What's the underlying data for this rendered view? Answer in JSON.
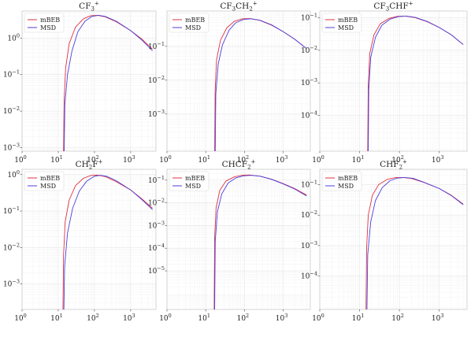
{
  "chart_data": [
    {
      "type": "line",
      "title": "CF$_3^+$",
      "title_main": "CF",
      "title_sub": "3",
      "title_sup": "+",
      "xlabel": "",
      "ylabel": "",
      "xscale": "log",
      "yscale": "log",
      "xlim": [
        1,
        5000
      ],
      "ylim": [
        0.0008,
        5.5
      ],
      "xticks": [
        1,
        10,
        100,
        1000
      ],
      "xtick_labels": [
        "10",
        "10",
        "10",
        "10"
      ],
      "xtick_exponents": [
        "0",
        "1",
        "2",
        "3"
      ],
      "yticks": [
        0.001,
        0.01,
        0.1,
        1
      ],
      "ytick_labels": [
        "10",
        "10",
        "10",
        "10"
      ],
      "ytick_exponents": [
        "−3",
        "−2",
        "−1",
        "0"
      ],
      "grid": true,
      "legend": "top-left",
      "series": [
        {
          "name": "mBEB",
          "color": "#e0303f",
          "threshold": 14.0,
          "x": [
            14.0,
            14.5,
            16,
            20,
            30,
            50,
            80,
            120,
            200,
            400,
            1000,
            2000,
            4000
          ],
          "y": [
            0.0008,
            0.02,
            0.15,
            0.7,
            2.0,
            3.4,
            4.1,
            4.2,
            3.8,
            2.8,
            1.6,
            0.95,
            0.5
          ]
        },
        {
          "name": "MSD",
          "color": "#4b3fe0",
          "threshold": 14.6,
          "x": [
            14.6,
            15.2,
            18,
            24,
            35,
            55,
            85,
            130,
            200,
            400,
            1000,
            2000,
            4000
          ],
          "y": [
            0.0008,
            0.015,
            0.1,
            0.45,
            1.5,
            2.9,
            3.9,
            4.2,
            3.9,
            2.9,
            1.6,
            0.9,
            0.45
          ]
        }
      ]
    },
    {
      "type": "line",
      "title": "CF$_3$CH$_2^+$",
      "title_main": "CF",
      "title_sub": "3",
      "title_mid": "CH",
      "title_sub2": "2",
      "title_sup": "+",
      "xlabel": "",
      "ylabel": "",
      "xscale": "log",
      "yscale": "log",
      "xlim": [
        1,
        5000
      ],
      "ylim": [
        8e-05,
        1.1
      ],
      "xticks": [
        1,
        10,
        100,
        1000
      ],
      "xtick_labels": [
        "10",
        "10",
        "10",
        "10"
      ],
      "xtick_exponents": [
        "0",
        "1",
        "2",
        "3"
      ],
      "yticks": [
        0.001,
        0.01,
        0.1
      ],
      "ytick_labels": [
        "10",
        "10",
        "10"
      ],
      "ytick_exponents": [
        "−3",
        "−2",
        "−1"
      ],
      "grid": true,
      "legend": "top-left",
      "series": [
        {
          "name": "mBEB",
          "color": "#e0303f",
          "threshold": 17.0,
          "x": [
            17.0,
            17.5,
            19,
            24,
            35,
            55,
            90,
            140,
            250,
            500,
            1000,
            2000,
            4000
          ],
          "y": [
            8e-05,
            0.005,
            0.04,
            0.15,
            0.35,
            0.55,
            0.65,
            0.66,
            0.58,
            0.42,
            0.27,
            0.16,
            0.085
          ]
        },
        {
          "name": "MSD",
          "color": "#4b3fe0",
          "threshold": 17.6,
          "x": [
            17.6,
            18.2,
            21,
            27,
            40,
            60,
            95,
            150,
            250,
            500,
            1000,
            2000,
            4000
          ],
          "y": [
            8e-05,
            0.004,
            0.03,
            0.11,
            0.3,
            0.5,
            0.62,
            0.65,
            0.59,
            0.43,
            0.27,
            0.16,
            0.085
          ]
        }
      ]
    },
    {
      "type": "line",
      "title": "CF$_3$CHF$^+$",
      "title_main": "CF",
      "title_sub": "3",
      "title_mid": "CHF",
      "title_sup": "+",
      "xlabel": "",
      "ylabel": "",
      "xscale": "log",
      "yscale": "log",
      "xlim": [
        1,
        5000
      ],
      "ylim": [
        8e-06,
        0.16
      ],
      "xticks": [
        1,
        10,
        100,
        1000
      ],
      "xtick_labels": [
        "10",
        "10",
        "10",
        "10"
      ],
      "xtick_exponents": [
        "0",
        "1",
        "2",
        "3"
      ],
      "yticks": [
        0.0001,
        0.001,
        0.01,
        0.1
      ],
      "ytick_labels": [
        "10",
        "10",
        "10",
        "10"
      ],
      "ytick_exponents": [
        "−4",
        "−3",
        "−2",
        "−1"
      ],
      "grid": true,
      "legend": "top-left",
      "series": [
        {
          "name": "mBEB",
          "color": "#e0303f",
          "threshold": 16.0,
          "x": [
            16.0,
            16.5,
            18,
            23,
            33,
            55,
            90,
            140,
            250,
            500,
            1000,
            2000,
            4000
          ],
          "y": [
            8e-06,
            0.0008,
            0.008,
            0.03,
            0.065,
            0.095,
            0.11,
            0.112,
            0.1,
            0.075,
            0.05,
            0.03,
            0.015
          ]
        },
        {
          "name": "MSD",
          "color": "#4b3fe0",
          "threshold": 16.5,
          "x": [
            16.5,
            17.0,
            19,
            25,
            36,
            58,
            95,
            150,
            250,
            500,
            1000,
            2000,
            4000
          ],
          "y": [
            8e-06,
            0.0006,
            0.006,
            0.025,
            0.058,
            0.09,
            0.108,
            0.112,
            0.102,
            0.077,
            0.05,
            0.03,
            0.015
          ]
        }
      ]
    },
    {
      "type": "line",
      "title": "CH$_2$F$^+$",
      "title_main": "CH",
      "title_sub": "2",
      "title_mid": "F",
      "title_sup": "+",
      "xlabel": "",
      "ylabel": "",
      "xscale": "log",
      "yscale": "log",
      "xlim": [
        1,
        5000
      ],
      "ylim": [
        0.0002,
        1.4
      ],
      "xticks": [
        1,
        10,
        100,
        1000
      ],
      "xtick_labels": [
        "10",
        "10",
        "10",
        "10"
      ],
      "xtick_exponents": [
        "0",
        "1",
        "2",
        "3"
      ],
      "yticks": [
        0.001,
        0.01,
        0.1,
        1
      ],
      "ytick_labels": [
        "10",
        "10",
        "10",
        "10"
      ],
      "ytick_exponents": [
        "−3",
        "−2",
        "−1",
        "0"
      ],
      "grid": true,
      "legend": "top-left",
      "series": [
        {
          "name": "mBEB",
          "color": "#e0303f",
          "threshold": 13.5,
          "x": [
            13.5,
            14.0,
            15.5,
            20,
            30,
            50,
            80,
            120,
            200,
            400,
            1000,
            2000,
            4000
          ],
          "y": [
            0.0002,
            0.006,
            0.05,
            0.2,
            0.5,
            0.8,
            0.95,
            0.97,
            0.88,
            0.64,
            0.38,
            0.22,
            0.12
          ]
        },
        {
          "name": "MSD",
          "color": "#4b3fe0",
          "threshold": 14.3,
          "x": [
            14.3,
            15.0,
            18,
            25,
            38,
            60,
            95,
            140,
            220,
            400,
            1000,
            2000,
            4000
          ],
          "y": [
            0.0002,
            0.003,
            0.025,
            0.12,
            0.35,
            0.65,
            0.88,
            0.96,
            0.9,
            0.68,
            0.38,
            0.21,
            0.11
          ]
        }
      ]
    },
    {
      "type": "line",
      "title": "CHCF$_2^+$",
      "title_main": "CHCF",
      "title_sub": "2",
      "title_sup": "+",
      "xlabel": "",
      "ylabel": "",
      "xscale": "log",
      "yscale": "log",
      "xlim": [
        1,
        5000
      ],
      "ylim": [
        2e-07,
        0.3
      ],
      "xticks": [
        1,
        10,
        100,
        1000
      ],
      "xtick_labels": [
        "10",
        "10",
        "10",
        "10"
      ],
      "xtick_exponents": [
        "0",
        "1",
        "2",
        "3"
      ],
      "yticks": [
        1e-05,
        0.0001,
        0.001,
        0.01,
        0.1
      ],
      "ytick_labels": [
        "10",
        "10",
        "10",
        "10",
        "10"
      ],
      "ytick_exponents": [
        "−5",
        "−4",
        "−3",
        "−2",
        "−1"
      ],
      "grid": true,
      "legend": "top-left",
      "series": [
        {
          "name": "mBEB",
          "color": "#e0303f",
          "threshold": 16.5,
          "x": [
            16.5,
            17.0,
            18.5,
            23,
            33,
            55,
            90,
            140,
            250,
            500,
            1000,
            2000,
            4000
          ],
          "y": [
            2e-07,
            0.0003,
            0.006,
            0.035,
            0.09,
            0.14,
            0.165,
            0.168,
            0.15,
            0.11,
            0.07,
            0.042,
            0.022
          ]
        },
        {
          "name": "MSD",
          "color": "#4b3fe0",
          "threshold": 17.0,
          "x": [
            17.0,
            17.6,
            20,
            26,
            38,
            60,
            95,
            150,
            250,
            500,
            1000,
            2000,
            4000
          ],
          "y": [
            2e-07,
            0.0002,
            0.004,
            0.025,
            0.075,
            0.125,
            0.155,
            0.162,
            0.148,
            0.108,
            0.068,
            0.04,
            0.02
          ]
        }
      ]
    },
    {
      "type": "line",
      "title": "CHF$_2^+$",
      "title_main": "CHF",
      "title_sub": "2",
      "title_sup": "+",
      "xlabel": "",
      "ylabel": "",
      "xscale": "log",
      "yscale": "log",
      "xlim": [
        1,
        5000
      ],
      "ylim": [
        8e-06,
        0.32
      ],
      "xticks": [
        1,
        10,
        100,
        1000
      ],
      "xtick_labels": [
        "10",
        "10",
        "10",
        "10"
      ],
      "xtick_exponents": [
        "0",
        "1",
        "2",
        "3"
      ],
      "yticks": [
        0.0001,
        0.001,
        0.01,
        0.1
      ],
      "ytick_labels": [
        "10",
        "10",
        "10",
        "10"
      ],
      "ytick_exponents": [
        "−4",
        "−3",
        "−2",
        "−1"
      ],
      "grid": true,
      "legend": "top-left",
      "series": [
        {
          "name": "mBEB",
          "color": "#e0303f",
          "threshold": 14.5,
          "x": [
            14.5,
            15.0,
            16.5,
            21,
            30,
            50,
            80,
            120,
            200,
            400,
            1000,
            2000,
            4000
          ],
          "y": [
            8e-06,
            0.0008,
            0.01,
            0.045,
            0.1,
            0.15,
            0.17,
            0.172,
            0.16,
            0.12,
            0.075,
            0.045,
            0.023
          ]
        },
        {
          "name": "MSD",
          "color": "#4b3fe0",
          "threshold": 15.3,
          "x": [
            15.3,
            16.0,
            19,
            25,
            37,
            58,
            90,
            135,
            220,
            400,
            1000,
            2000,
            4000
          ],
          "y": [
            8e-06,
            0.0005,
            0.006,
            0.03,
            0.08,
            0.135,
            0.165,
            0.172,
            0.162,
            0.122,
            0.075,
            0.044,
            0.022
          ]
        }
      ]
    }
  ]
}
